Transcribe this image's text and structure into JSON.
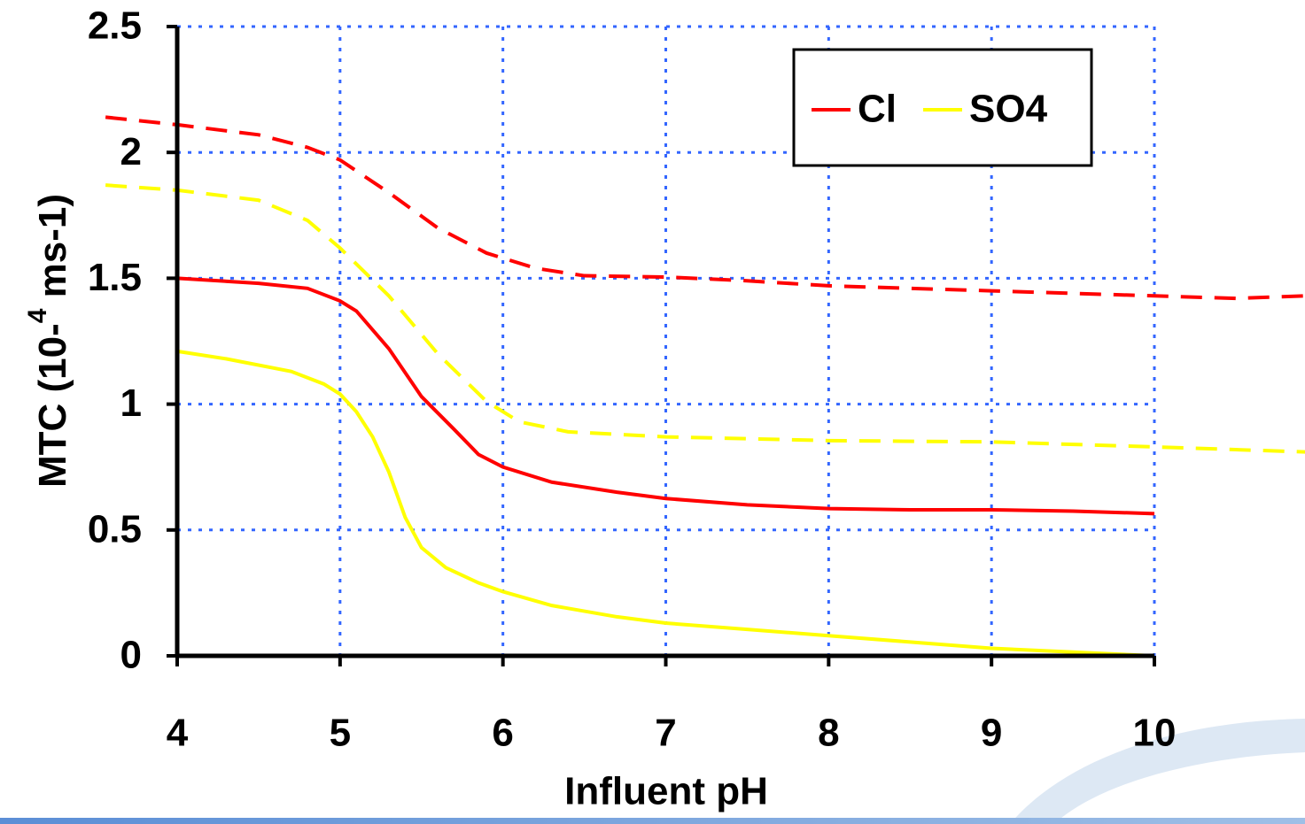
{
  "chart_data": {
    "type": "line",
    "xlabel": "Influent pH",
    "ylabel_parts": [
      "MTC (10-",
      "4",
      " ms-1)"
    ],
    "xlim": [
      4,
      10
    ],
    "xticks": [
      4,
      5,
      6,
      7,
      8,
      9,
      10
    ],
    "ylim": [
      0,
      2.5
    ],
    "yticks": [
      0,
      0.5,
      1,
      1.5,
      2,
      2.5
    ],
    "grid": true,
    "legend": "upper right",
    "series": [
      {
        "name": "Cl",
        "color": "#ff0000",
        "x": [
          4,
          4.5,
          4.8,
          5,
          5.1,
          5.3,
          5.5,
          5.7,
          5.85,
          6,
          6.3,
          6.7,
          7,
          7.5,
          8,
          8.5,
          9,
          9.5,
          10
        ],
        "values": [
          1.5,
          1.48,
          1.46,
          1.41,
          1.37,
          1.22,
          1.03,
          0.9,
          0.8,
          0.75,
          0.69,
          0.65,
          0.625,
          0.6,
          0.585,
          0.58,
          0.58,
          0.575,
          0.565
        ]
      },
      {
        "name": "SO4",
        "color": "#ffff00",
        "x": [
          4,
          4.3,
          4.7,
          4.9,
          5,
          5.1,
          5.2,
          5.3,
          5.4,
          5.5,
          5.65,
          5.85,
          6,
          6.3,
          6.7,
          7,
          7.5,
          8,
          8.5,
          9,
          9.5,
          10
        ],
        "values": [
          1.21,
          1.18,
          1.13,
          1.08,
          1.04,
          0.97,
          0.87,
          0.73,
          0.55,
          0.43,
          0.35,
          0.29,
          0.255,
          0.2,
          0.155,
          0.13,
          0.105,
          0.08,
          0.055,
          0.03,
          0.015,
          0
        ]
      },
      {
        "color": "#ff0000",
        "dashed": true,
        "x": [
          3.56,
          4,
          4.5,
          4.8,
          5,
          5.3,
          5.6,
          5.9,
          6.2,
          6.5,
          7,
          7.5,
          8,
          9,
          10,
          10.5,
          10.93
        ],
        "values": [
          2.14,
          2.11,
          2.07,
          2.02,
          1.97,
          1.84,
          1.7,
          1.6,
          1.54,
          1.51,
          1.505,
          1.49,
          1.47,
          1.45,
          1.43,
          1.42,
          1.43
        ]
      },
      {
        "color": "#ffff00",
        "dashed": true,
        "x": [
          3.56,
          4,
          4.5,
          4.8,
          5,
          5.3,
          5.6,
          5.9,
          6.1,
          6.4,
          7,
          8,
          9,
          10,
          10.93
        ],
        "values": [
          1.87,
          1.85,
          1.81,
          1.73,
          1.62,
          1.43,
          1.2,
          1.01,
          0.93,
          0.89,
          0.87,
          0.855,
          0.85,
          0.83,
          0.81
        ]
      }
    ]
  }
}
